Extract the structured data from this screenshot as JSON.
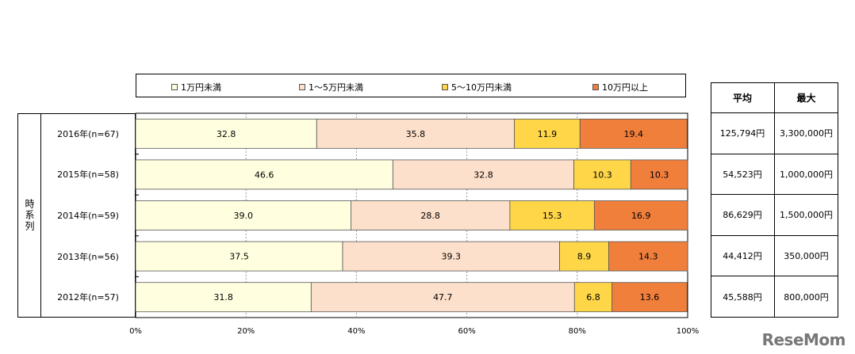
{
  "chart_data": {
    "type": "bar",
    "orientation": "horizontal",
    "stacked": true,
    "percent": true,
    "group_label": "時系列",
    "categories": [
      "2016年(n=67)",
      "2015年(n=58)",
      "2014年(n=59)",
      "2013年(n=56)",
      "2012年(n=57)"
    ],
    "series": [
      {
        "name": "1万円未満",
        "color": "#ffffe0",
        "values": [
          32.8,
          46.6,
          39.0,
          37.5,
          31.8
        ],
        "labels": [
          "32.8",
          "46.6",
          "39.0",
          "37.5",
          "31.8"
        ]
      },
      {
        "name": "1～5万円未満",
        "color": "#fde0cb",
        "values": [
          35.8,
          32.8,
          28.8,
          39.3,
          47.7
        ],
        "labels": [
          "35.8",
          "32.8",
          "28.8",
          "39.3",
          "47.7"
        ]
      },
      {
        "name": "5～10万円未満",
        "color": "#fed648",
        "values": [
          11.9,
          10.3,
          15.3,
          8.9,
          6.8
        ],
        "labels": [
          "11.9",
          "10.3",
          "15.3",
          "8.9",
          "6.8"
        ]
      },
      {
        "name": "10万円以上",
        "color": "#f07f3c",
        "values": [
          19.4,
          10.3,
          16.9,
          14.3,
          13.6
        ],
        "labels": [
          "19.4",
          "10.3",
          "16.9",
          "14.3",
          "13.6"
        ]
      }
    ],
    "xlim": [
      0,
      100
    ],
    "xticks": [
      "0%",
      "20%",
      "40%",
      "60%",
      "80%",
      "100%"
    ],
    "legend_position": "top",
    "grid": "vertical dashed"
  },
  "stats_table": {
    "headers": [
      "平均",
      "最大"
    ],
    "rows": [
      [
        "125,794円",
        "3,300,000円"
      ],
      [
        "54,523円",
        "1,000,000円"
      ],
      [
        "86,629円",
        "1,500,000円"
      ],
      [
        "44,412円",
        "350,000円"
      ],
      [
        "45,588円",
        "800,000円"
      ]
    ]
  },
  "watermark": "ReseMom"
}
